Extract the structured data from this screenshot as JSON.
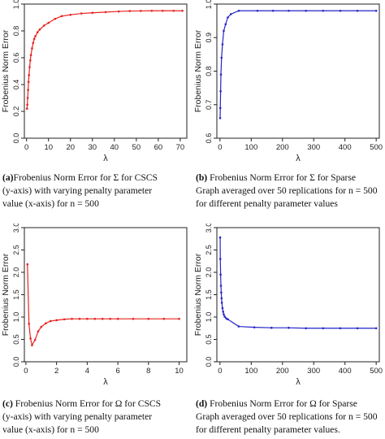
{
  "chart_data": [
    {
      "id": "a",
      "type": "line",
      "xlabel": "λ",
      "ylabel": "Frobenius Norm Error",
      "xlim": [
        -1,
        73
      ],
      "ylim": [
        0.0,
        1.0
      ],
      "xticks": [
        0,
        10,
        20,
        30,
        40,
        50,
        60,
        70
      ],
      "yticks": [
        0.0,
        0.2,
        0.4,
        0.6,
        0.8,
        1.0
      ],
      "ytick_labels": [
        "0.0",
        "0.2",
        "0.4",
        "0.6",
        "0.8",
        "1.0"
      ],
      "grid": false,
      "color": "#e8231f",
      "series": [
        {
          "x": [
            0.2,
            0.35,
            0.5,
            0.7,
            0.9,
            1.1,
            1.4,
            1.7,
            2.0,
            2.5,
            3.0,
            3.5,
            4.0,
            5.0,
            6.0,
            8.0,
            10.0,
            13.0,
            16.0,
            20.0,
            25.0,
            30.0,
            36.0,
            42.0,
            47.0,
            52.0,
            57.0,
            62.0,
            67.0,
            71.0
          ],
          "values": [
            0.22,
            0.25,
            0.3,
            0.36,
            0.42,
            0.47,
            0.53,
            0.58,
            0.62,
            0.67,
            0.71,
            0.74,
            0.76,
            0.79,
            0.81,
            0.84,
            0.86,
            0.89,
            0.91,
            0.92,
            0.93,
            0.935,
            0.94,
            0.945,
            0.948,
            0.949,
            0.95,
            0.95,
            0.95,
            0.95
          ]
        }
      ]
    },
    {
      "id": "b",
      "type": "line",
      "xlabel": "λ",
      "ylabel": "Frobenius Norm Error",
      "xlim": [
        -10,
        510
      ],
      "ylim": [
        0.6,
        1.0
      ],
      "xticks": [
        0,
        100,
        200,
        300,
        400,
        500
      ],
      "yticks": [
        0.6,
        0.7,
        0.8,
        0.9,
        1.0
      ],
      "ytick_labels": [
        "0.6",
        "0.7",
        "0.8",
        "0.9",
        "1.0"
      ],
      "grid": false,
      "color": "#2424c8",
      "series": [
        {
          "x": [
            0.5,
            1,
            2,
            3,
            5,
            8,
            12,
            18,
            25,
            35,
            60,
            120,
            170,
            220,
            275,
            330,
            385,
            440,
            500
          ],
          "values": [
            0.66,
            0.69,
            0.74,
            0.79,
            0.84,
            0.88,
            0.92,
            0.94,
            0.96,
            0.97,
            0.98,
            0.98,
            0.98,
            0.98,
            0.98,
            0.98,
            0.98,
            0.98,
            0.98
          ]
        }
      ]
    },
    {
      "id": "c",
      "type": "line",
      "xlabel": "λ",
      "ylabel": "Frobenius Norm Error",
      "xlim": [
        -0.1,
        10.5
      ],
      "ylim": [
        0.0,
        3.0
      ],
      "xticks": [
        0,
        2,
        4,
        6,
        8,
        10
      ],
      "yticks": [
        0.0,
        0.5,
        1.0,
        1.5,
        2.0,
        2.5,
        3.0
      ],
      "ytick_labels": [
        "0.0",
        "0.5",
        "1.0",
        "1.5",
        "2.0",
        "2.5",
        "3.0"
      ],
      "grid": false,
      "color": "#e8231f",
      "series": [
        {
          "x": [
            0.1,
            0.2,
            0.3,
            0.4,
            0.6,
            0.8,
            1.0,
            1.3,
            1.6,
            2.0,
            2.5,
            3.0,
            3.5,
            4.0,
            4.5,
            5.0,
            5.5,
            6.0,
            7.0,
            8.0,
            9.0,
            10.0
          ],
          "values": [
            2.18,
            0.85,
            0.52,
            0.37,
            0.49,
            0.68,
            0.78,
            0.86,
            0.91,
            0.93,
            0.95,
            0.96,
            0.96,
            0.96,
            0.96,
            0.96,
            0.96,
            0.96,
            0.96,
            0.96,
            0.96,
            0.96
          ]
        }
      ]
    },
    {
      "id": "d",
      "type": "line",
      "xlabel": "λ",
      "ylabel": "Frobenius Norm Error",
      "xlim": [
        -10,
        510
      ],
      "ylim": [
        0.0,
        3.0
      ],
      "xticks": [
        0,
        100,
        200,
        300,
        400,
        500
      ],
      "yticks": [
        0.0,
        0.5,
        1.0,
        1.5,
        2.0,
        2.5,
        3.0
      ],
      "ytick_labels": [
        "0.0",
        "0.5",
        "1.0",
        "1.5",
        "2.0",
        "2.5",
        "3.0"
      ],
      "grid": false,
      "color": "#2424c8",
      "series": [
        {
          "x": [
            0.5,
            1,
            2,
            3,
            4,
            5,
            6,
            8,
            10,
            12,
            15,
            20,
            25,
            60,
            110,
            165,
            220,
            275,
            330,
            385,
            440,
            500
          ],
          "values": [
            2.78,
            2.3,
            1.95,
            1.7,
            1.55,
            1.42,
            1.32,
            1.2,
            1.12,
            1.06,
            1.01,
            0.97,
            0.95,
            0.79,
            0.77,
            0.76,
            0.76,
            0.75,
            0.75,
            0.75,
            0.75,
            0.75
          ]
        }
      ]
    }
  ],
  "captions": {
    "a": {
      "label": "(a)",
      "lines": [
        "Frobenius Norm Error for Σ for CSCS",
        "(y-axis) with varying penalty parameter",
        "value (x-axis) for n = 500"
      ]
    },
    "b": {
      "label": "(b)",
      "lines": [
        "Frobenius Norm Error for Σ for Sparse",
        "Graph averaged over 50 replications for n = 500",
        "for different penalty parameter values"
      ]
    },
    "c": {
      "label": "(c)",
      "lines": [
        "Frobenius Norm Error for Ω for CSCS",
        "(y-axis) with varying penalty parameter",
        "value (x-axis) for n = 500"
      ]
    },
    "d": {
      "label": "(d)",
      "lines": [
        "Frobenius Norm Error for Ω for Sparse",
        "Graph averaged over 50 replications for n = 500",
        "for different penalty parameter values."
      ]
    }
  }
}
